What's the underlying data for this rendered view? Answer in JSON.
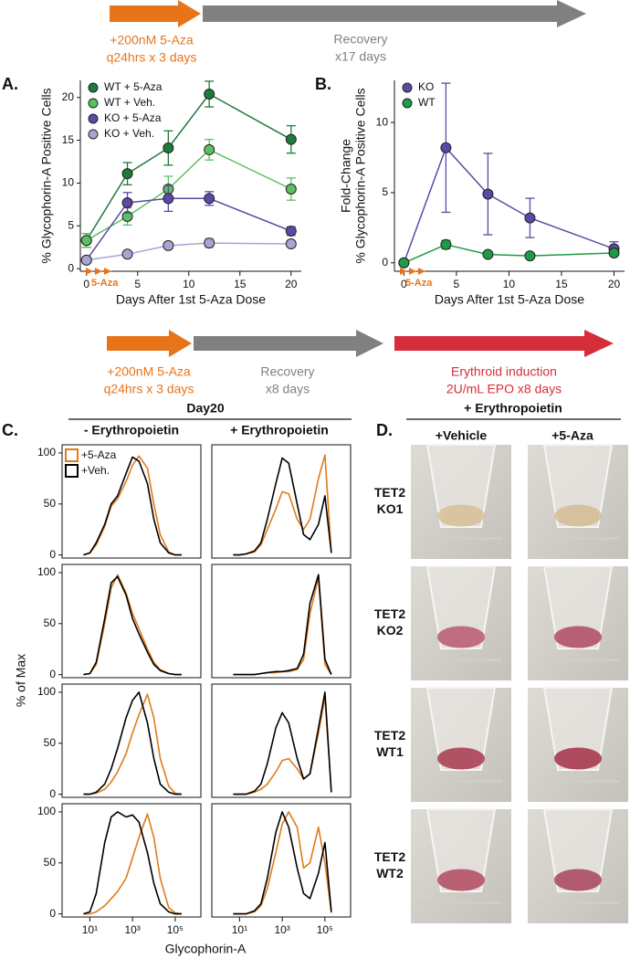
{
  "timelines": [
    {
      "treatment": [
        "+200nM 5-Aza",
        "q24hrs x 3 days"
      ],
      "recovery": [
        "Recovery",
        "x17 days"
      ]
    },
    {
      "treatment": [
        "+200nM 5-Aza",
        "q24hrs x 3 days"
      ],
      "recovery": [
        "Recovery",
        "x8 days"
      ],
      "induction": [
        "Erythroid induction",
        "2U/mL EPO x8 days"
      ]
    }
  ],
  "panel_labels": [
    "A.",
    "B.",
    "C.",
    "D."
  ],
  "panel_c": {
    "title": "Day20",
    "columns": [
      "- Erythropoietin",
      "+ Erythropoietin"
    ],
    "ylabel": "% of Max",
    "xlabel": "Glycophorin-A"
  },
  "panel_d": {
    "title": "+ Erythropoietin",
    "columns": [
      "+Vehicle",
      "+5-Aza"
    ],
    "rows": [
      [
        "TET2",
        "KO1"
      ],
      [
        "TET2",
        "KO2"
      ],
      [
        "TET2",
        "WT1"
      ],
      [
        "TET2",
        "WT2"
      ]
    ]
  },
  "chart_data": [
    {
      "type": "line",
      "xlabel": "Days After 1st 5-Aza Dose",
      "ylabel": [
        "% Glycophorin-A Positive Cells"
      ],
      "annotation": "5-Aza",
      "x": [
        0,
        4,
        8,
        12,
        20
      ],
      "xlim": [
        -0.6,
        21
      ],
      "ylim": [
        -0.3,
        22
      ],
      "xticks": [
        0,
        5,
        10,
        15,
        20
      ],
      "yticks": [
        0,
        5,
        10,
        15,
        20
      ],
      "frame": "open",
      "markers": true,
      "legend": "upper-left",
      "series": [
        {
          "name": "WT + 5-Aza",
          "color": "#1f7a3c",
          "values": [
            3.3,
            11.1,
            14.1,
            20.4,
            15.1
          ],
          "errors": [
            0.8,
            1.3,
            2.0,
            1.5,
            1.6
          ]
        },
        {
          "name": "WT + Veh.",
          "color": "#5cbf63",
          "values": [
            3.3,
            6.1,
            9.3,
            13.9,
            9.3
          ],
          "errors": [
            0.8,
            1.0,
            1.5,
            1.2,
            1.3
          ]
        },
        {
          "name": "KO + 5-Aza",
          "color": "#5a4aa5",
          "values": [
            1.0,
            7.7,
            8.2,
            8.2,
            4.4
          ],
          "errors": [
            0.2,
            1.2,
            1.5,
            0.8,
            0.5
          ]
        },
        {
          "name": "KO + Veh.",
          "color": "#aaa4d3",
          "values": [
            1.0,
            1.7,
            2.7,
            3.0,
            2.9
          ],
          "errors": [
            0.2,
            0.3,
            0.4,
            0.5,
            0.3
          ]
        }
      ]
    },
    {
      "type": "line",
      "xlabel": "Days After 1st 5-Aza Dose",
      "ylabel": [
        "Fold-Change",
        "% Glycophorin-A Positive Cells"
      ],
      "annotation": "5-Aza",
      "x": [
        0,
        4,
        8,
        12,
        20
      ],
      "xlim": [
        -0.9,
        21
      ],
      "ylim": [
        -0.6,
        13
      ],
      "xticks": [
        0,
        5,
        10,
        15,
        20
      ],
      "yticks": [
        0,
        5,
        10
      ],
      "frame": "open",
      "markers": true,
      "legend": "upper-left",
      "series": [
        {
          "name": "KO",
          "color": "#5a4aa5",
          "values": [
            0,
            8.2,
            4.9,
            3.2,
            1.0
          ],
          "errors": [
            0.1,
            4.6,
            2.9,
            1.4,
            0.5
          ]
        },
        {
          "name": "WT",
          "color": "#1f9a48",
          "values": [
            0,
            1.3,
            0.6,
            0.5,
            0.7
          ],
          "errors": [
            0.1,
            0.3,
            0.1,
            0.1,
            0.2
          ]
        }
      ]
    },
    {
      "type": "line",
      "xscale": "log",
      "x": [
        5,
        10,
        20,
        50,
        100,
        200,
        500,
        1000,
        2000,
        5000,
        10000,
        20000,
        50000,
        100000,
        200000
      ],
      "xlim": [
        0.5,
        1600000
      ],
      "ylim": [
        -3,
        108
      ],
      "frame": "box",
      "legend": "upper-left",
      "yticks": [
        0,
        50,
        100
      ],
      "series": [
        {
          "name": "+5-Aza",
          "color": "#e07b1a",
          "values": [
            0,
            2,
            10,
            28,
            48,
            55,
            72,
            88,
            97,
            85,
            50,
            20,
            3,
            0,
            0
          ]
        },
        {
          "name": "+Veh.",
          "color": "#000000",
          "values": [
            0,
            2,
            12,
            30,
            50,
            58,
            80,
            96,
            92,
            70,
            35,
            12,
            2,
            0,
            0
          ]
        }
      ]
    },
    {
      "type": "line",
      "xscale": "log",
      "x": [
        5,
        10,
        20,
        50,
        100,
        200,
        500,
        1000,
        2000,
        5000,
        10000,
        20000,
        50000,
        100000,
        200000
      ],
      "xlim": [
        0.5,
        1600000
      ],
      "ylim": [
        -3,
        108
      ],
      "frame": "box",
      "series": [
        {
          "color": "#e07b1a",
          "values": [
            0,
            0,
            1,
            3,
            10,
            25,
            45,
            62,
            60,
            35,
            25,
            35,
            75,
            98,
            2
          ]
        },
        {
          "color": "#000000",
          "values": [
            0,
            0,
            1,
            4,
            12,
            35,
            70,
            95,
            90,
            50,
            20,
            15,
            30,
            58,
            2
          ]
        }
      ]
    },
    {
      "type": "line",
      "xscale": "log",
      "x": [
        5,
        10,
        20,
        50,
        100,
        200,
        500,
        1000,
        2000,
        5000,
        10000,
        20000,
        50000,
        100000,
        200000
      ],
      "xlim": [
        0.5,
        1600000
      ],
      "ylim": [
        -3,
        108
      ],
      "frame": "box",
      "yticks": [
        0,
        50,
        100
      ],
      "series": [
        {
          "color": "#e07b1a",
          "values": [
            0,
            1,
            10,
            50,
            85,
            98,
            80,
            60,
            45,
            25,
            12,
            5,
            1,
            0,
            0
          ]
        },
        {
          "color": "#000000",
          "values": [
            0,
            1,
            12,
            55,
            90,
            96,
            78,
            55,
            40,
            22,
            10,
            4,
            1,
            0,
            0
          ]
        }
      ]
    },
    {
      "type": "line",
      "xscale": "log",
      "x": [
        5,
        10,
        20,
        50,
        100,
        200,
        500,
        1000,
        2000,
        5000,
        10000,
        20000,
        50000,
        100000,
        200000
      ],
      "xlim": [
        0.5,
        1600000
      ],
      "ylim": [
        -3,
        108
      ],
      "frame": "box",
      "series": [
        {
          "color": "#e07b1a",
          "values": [
            0,
            0,
            0,
            0,
            1,
            2,
            2,
            3,
            3,
            5,
            15,
            60,
            95,
            10,
            0
          ]
        },
        {
          "color": "#000000",
          "values": [
            0,
            0,
            0,
            0,
            1,
            2,
            3,
            3,
            4,
            6,
            20,
            70,
            98,
            15,
            0
          ]
        }
      ]
    },
    {
      "type": "line",
      "xscale": "log",
      "x": [
        5,
        10,
        20,
        50,
        100,
        200,
        500,
        1000,
        2000,
        5000,
        10000,
        20000,
        50000,
        100000,
        200000
      ],
      "xlim": [
        0.5,
        1600000
      ],
      "ylim": [
        -3,
        108
      ],
      "frame": "box",
      "yticks": [
        0,
        50,
        100
      ],
      "series": [
        {
          "color": "#e07b1a",
          "values": [
            0,
            0,
            1,
            5,
            12,
            22,
            40,
            60,
            78,
            98,
            75,
            35,
            8,
            1,
            0
          ]
        },
        {
          "color": "#000000",
          "values": [
            0,
            0,
            2,
            10,
            25,
            45,
            75,
            92,
            100,
            70,
            35,
            10,
            2,
            0,
            0
          ]
        }
      ]
    },
    {
      "type": "line",
      "xscale": "log",
      "x": [
        5,
        10,
        20,
        50,
        100,
        200,
        500,
        1000,
        2000,
        5000,
        10000,
        20000,
        50000,
        100000,
        200000
      ],
      "xlim": [
        0.5,
        1600000
      ],
      "ylim": [
        -3,
        108
      ],
      "frame": "box",
      "series": [
        {
          "color": "#e07b1a",
          "values": [
            0,
            0,
            0,
            2,
            5,
            10,
            22,
            33,
            35,
            25,
            15,
            20,
            60,
            95,
            2
          ]
        },
        {
          "color": "#000000",
          "values": [
            0,
            0,
            0,
            3,
            10,
            30,
            65,
            80,
            70,
            35,
            15,
            20,
            65,
            100,
            2
          ]
        }
      ]
    },
    {
      "type": "line",
      "xscale": "log",
      "x": [
        5,
        10,
        20,
        50,
        100,
        200,
        500,
        1000,
        2000,
        5000,
        10000,
        20000,
        50000,
        100000,
        200000
      ],
      "xlim": [
        0.5,
        1600000
      ],
      "ylim": [
        -3,
        108
      ],
      "frame": "box",
      "yticks": [
        0,
        50,
        100
      ],
      "xticks": [
        {
          "value": 10,
          "label": "10¹"
        },
        {
          "value": 1000,
          "label": "10³"
        },
        {
          "value": 100000,
          "label": "10⁵"
        }
      ],
      "series": [
        {
          "color": "#e07b1a",
          "values": [
            0,
            0,
            2,
            8,
            15,
            22,
            35,
            55,
            75,
            98,
            75,
            35,
            6,
            1,
            0
          ]
        },
        {
          "color": "#000000",
          "values": [
            0,
            2,
            20,
            70,
            95,
            100,
            95,
            97,
            90,
            60,
            30,
            10,
            2,
            0,
            0
          ]
        }
      ]
    },
    {
      "type": "line",
      "xscale": "log",
      "x": [
        5,
        10,
        20,
        50,
        100,
        200,
        500,
        1000,
        2000,
        5000,
        10000,
        20000,
        50000,
        100000,
        200000
      ],
      "xlim": [
        0.5,
        1600000
      ],
      "ylim": [
        -3,
        108
      ],
      "frame": "box",
      "xticks": [
        {
          "value": 10,
          "label": "10¹"
        },
        {
          "value": 1000,
          "label": "10³"
        },
        {
          "value": 100000,
          "label": "10⁵"
        }
      ],
      "series": [
        {
          "color": "#e07b1a",
          "values": [
            0,
            0,
            0,
            2,
            8,
            25,
            60,
            88,
            100,
            85,
            45,
            50,
            85,
            50,
            1
          ]
        },
        {
          "color": "#000000",
          "values": [
            0,
            0,
            0,
            3,
            10,
            35,
            80,
            100,
            85,
            45,
            20,
            15,
            40,
            70,
            2
          ]
        }
      ]
    }
  ]
}
